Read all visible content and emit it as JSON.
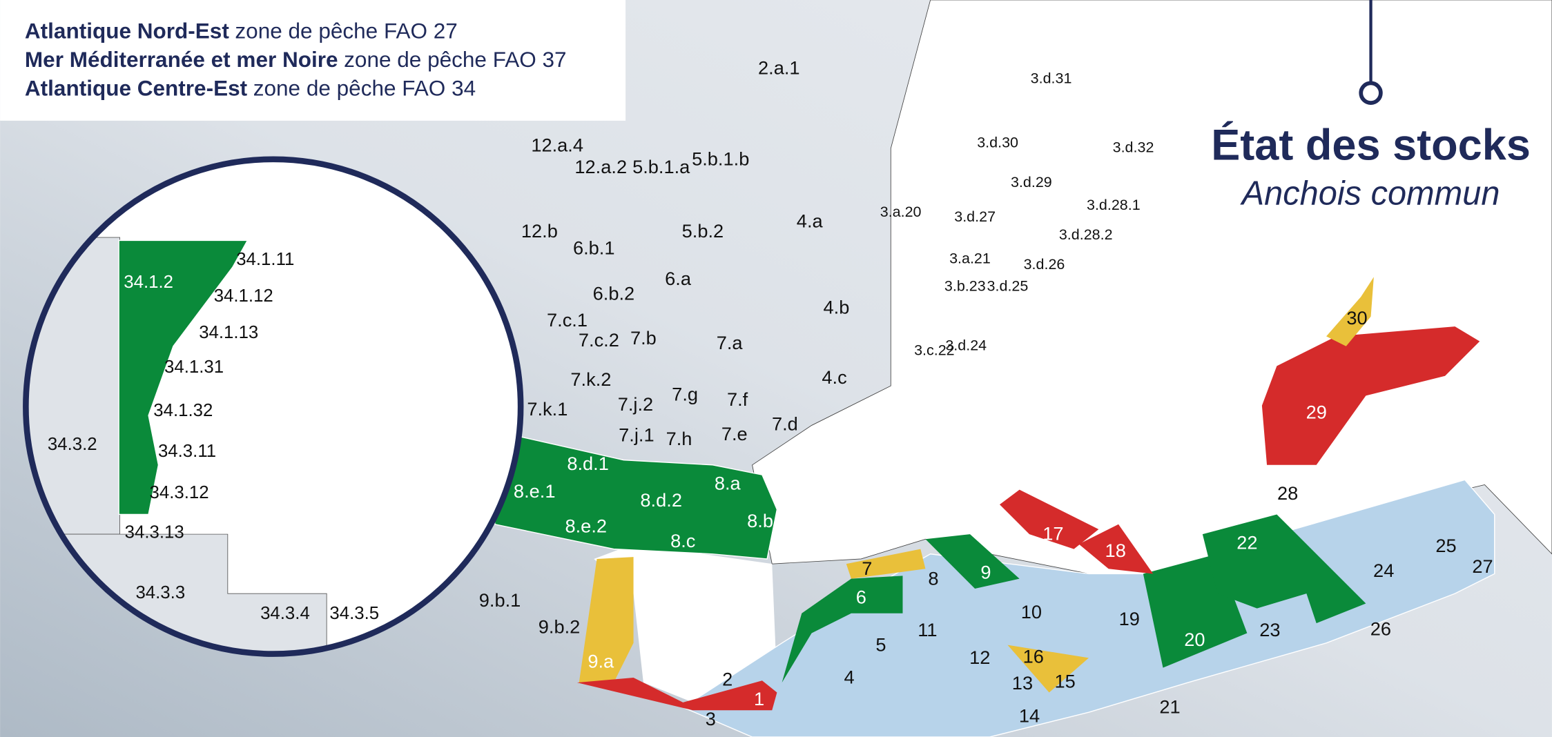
{
  "legend": [
    {
      "area": "Atlantique Nord-Est",
      "text": "zone de pêche FAO 27"
    },
    {
      "area": "Mer Méditerranée et mer Noire",
      "text": "zone de pêche FAO 37"
    },
    {
      "area": "Atlantique Centre-Est",
      "text": "zone de pêche FAO 34"
    }
  ],
  "title": "État des stocks",
  "subtitle": "Anchois commun",
  "zones": [
    "2.a.1",
    "12.a.4",
    "12.a.2",
    "5.b.1.a",
    "5.b.1.b",
    "12.b",
    "6.b.1",
    "5.b.2",
    "4.a",
    "6.a",
    "6.b.2",
    "4.b",
    "7.c.1",
    "7.c.2",
    "7.b",
    "7.a",
    "4.c",
    "7.k.2",
    "7.g",
    "7.f",
    "7.j.2",
    "7.k.1",
    "7.d",
    "7.j.1",
    "7.h",
    "7.e",
    "3.d.31",
    "3.d.30",
    "3.d.32",
    "3.d.29",
    "3.a.20",
    "3.d.27",
    "3.d.28.1",
    "3.d.28.2",
    "3.a.21",
    "3.d.26",
    "3.b.23",
    "3.d.25",
    "3.c.22",
    "3.d.24",
    "8.d.1",
    "8.a",
    "8.e.1",
    "8.d.2",
    "8.b",
    "8.e.2",
    "8.c",
    "9.b.1",
    "9.b.2",
    "9.a",
    "1",
    "2",
    "3",
    "4",
    "5",
    "6",
    "7",
    "8",
    "9",
    "10",
    "11",
    "12",
    "13",
    "14",
    "15",
    "16",
    "17",
    "18",
    "19",
    "20",
    "21",
    "22",
    "23",
    "24",
    "25",
    "26",
    "27",
    "28",
    "29",
    "30"
  ],
  "inset_zones": [
    "34.1.11",
    "34.1.12",
    "34.1.13",
    "34.1.31",
    "34.1.32",
    "34.3.11",
    "34.3.12",
    "34.1.2",
    "34.3.2",
    "34.3.13",
    "34.3.3",
    "34.3.4",
    "34.3.5"
  ]
}
